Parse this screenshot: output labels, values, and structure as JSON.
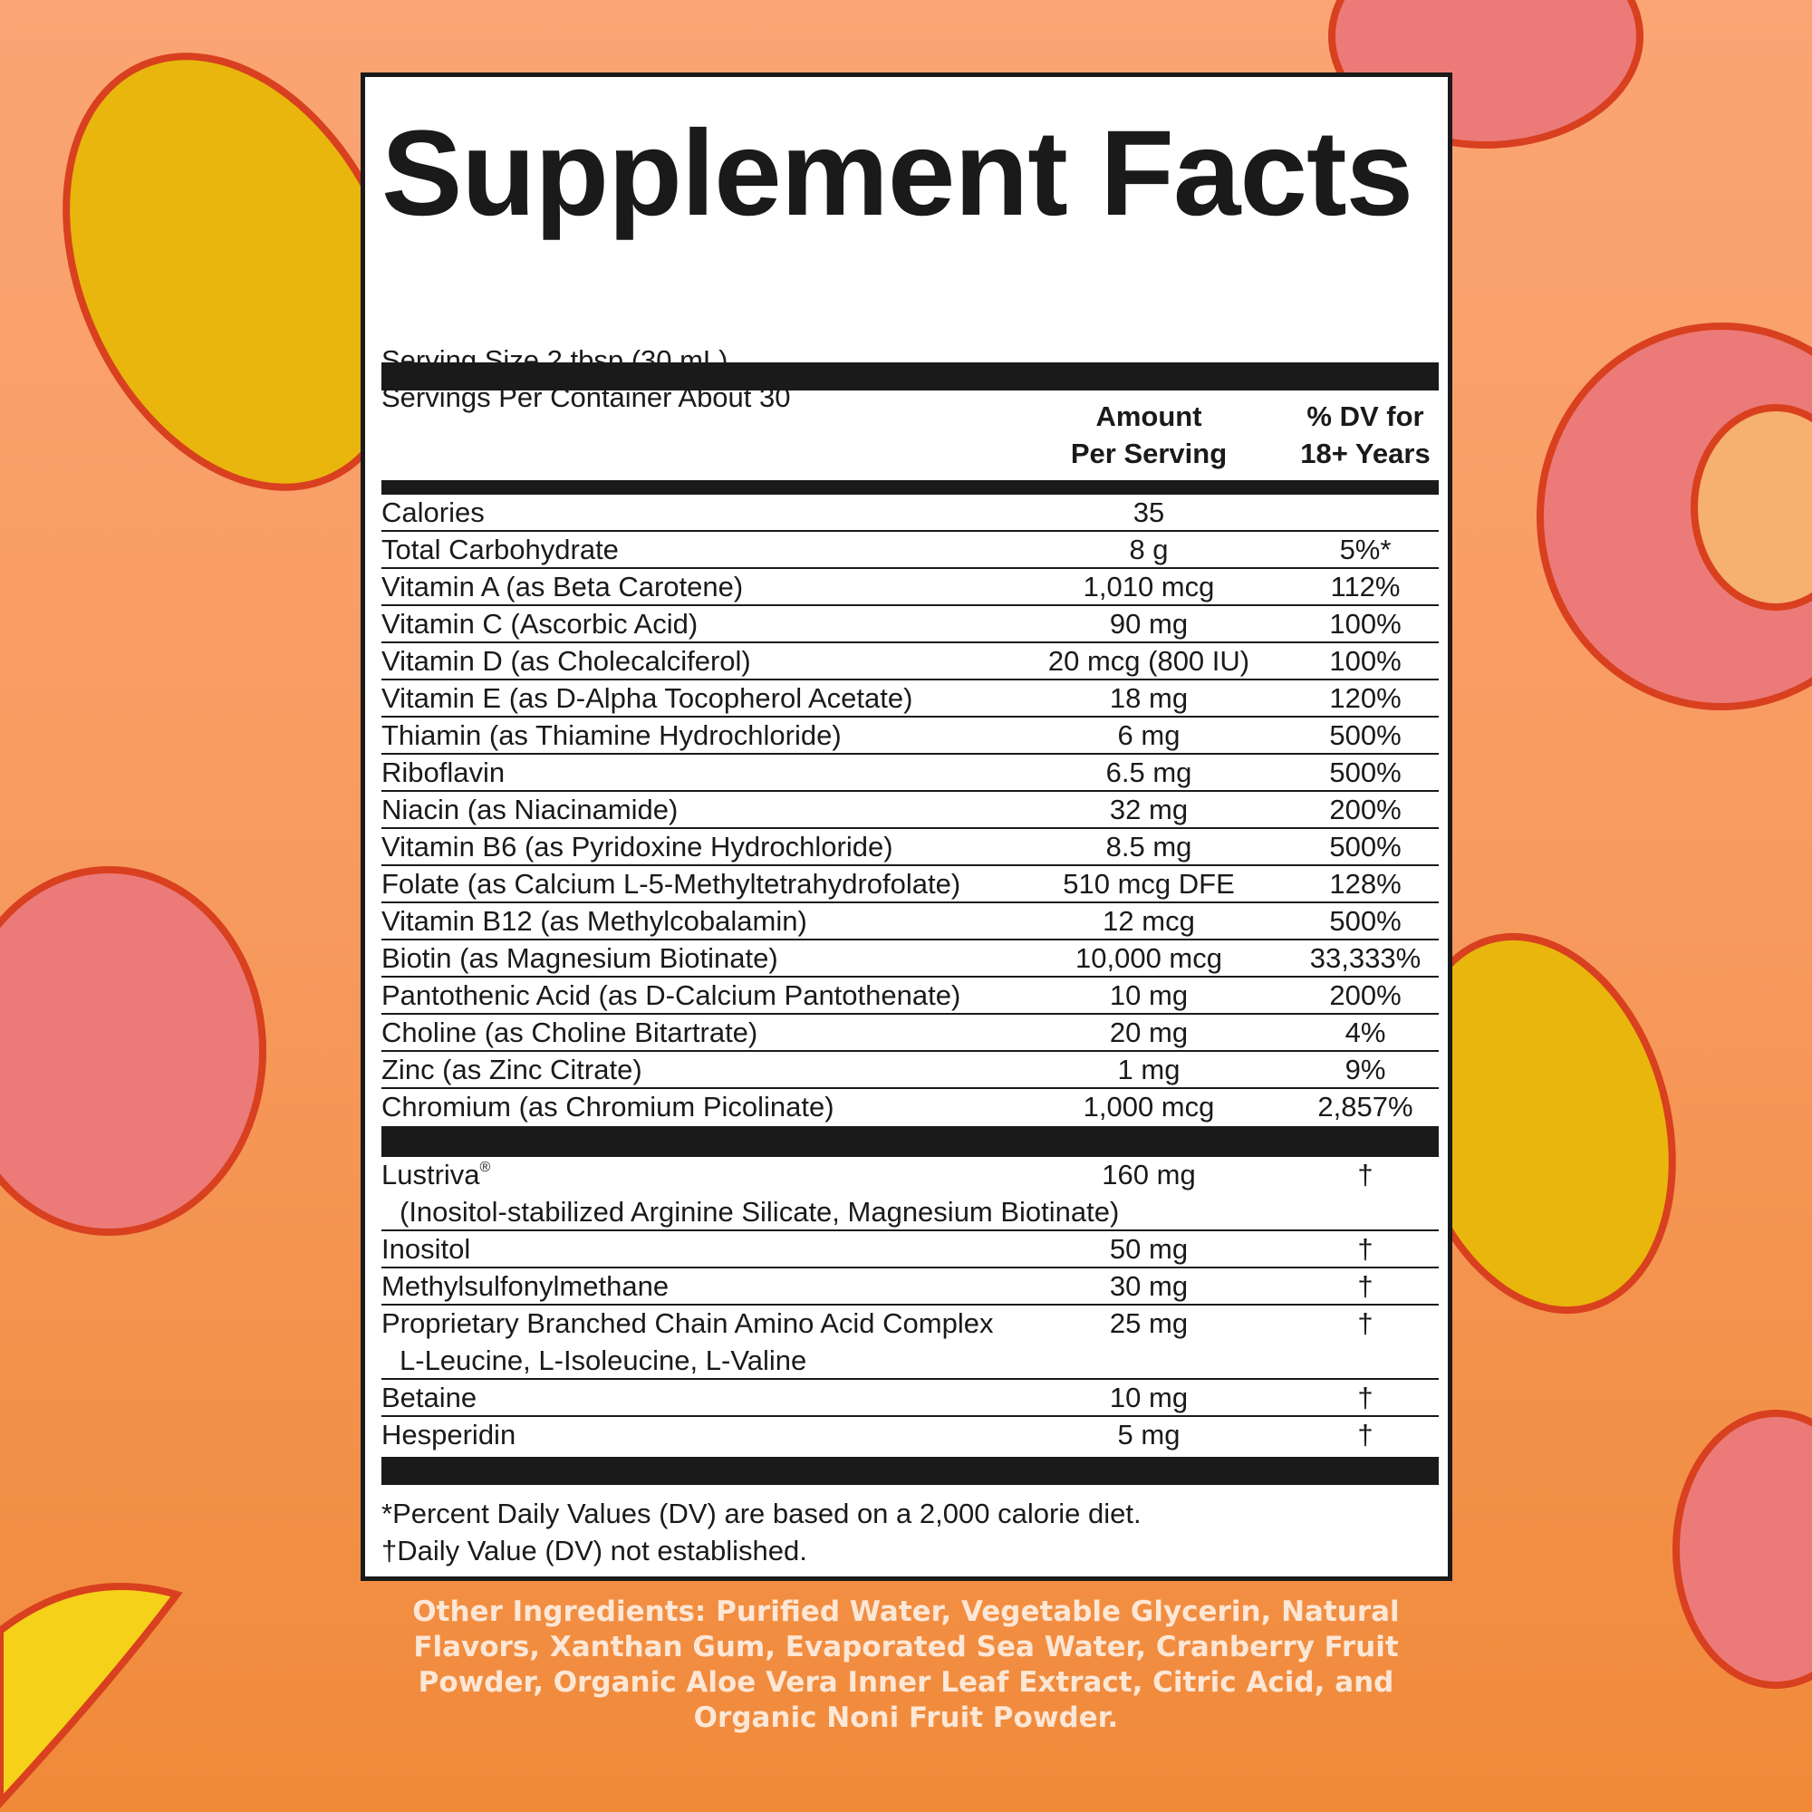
{
  "title": "Supplement Facts",
  "serving_size": "Serving Size 2 tbsp (30 mL)",
  "servings_per_container": "Servings Per Container About 30",
  "headers": {
    "amount_1": "Amount",
    "amount_2": "Per Serving",
    "dv_1": "% DV for",
    "dv_2": "18+ Years"
  },
  "nutrients": [
    {
      "name": "Calories",
      "amount": "35",
      "dv": ""
    },
    {
      "name": "Total Carbohydrate",
      "amount": "8 g",
      "dv": "5%*"
    },
    {
      "name": "Vitamin A (as Beta Carotene)",
      "amount": "1,010 mcg",
      "dv": "112%"
    },
    {
      "name": "Vitamin C (Ascorbic Acid)",
      "amount": "90 mg",
      "dv": "100%"
    },
    {
      "name": "Vitamin D (as Cholecalciferol)",
      "amount": "20 mcg (800 IU)",
      "dv": "100%"
    },
    {
      "name": "Vitamin E (as D-Alpha Tocopherol Acetate)",
      "amount": "18 mg",
      "dv": "120%"
    },
    {
      "name": "Thiamin (as Thiamine Hydrochloride)",
      "amount": "6 mg",
      "dv": "500%"
    },
    {
      "name": "Riboflavin",
      "amount": "6.5 mg",
      "dv": "500%"
    },
    {
      "name": "Niacin (as Niacinamide)",
      "amount": "32 mg",
      "dv": "200%"
    },
    {
      "name": "Vitamin B6 (as Pyridoxine Hydrochloride)",
      "amount": "8.5 mg",
      "dv": "500%"
    },
    {
      "name": "Folate (as Calcium L-5-Methyltetrahydrofolate)",
      "amount": "510 mcg DFE",
      "dv": "128%"
    },
    {
      "name": "Vitamin B12 (as Methylcobalamin)",
      "amount": "12 mcg",
      "dv": "500%"
    },
    {
      "name": "Biotin (as Magnesium Biotinate)",
      "amount": "10,000 mcg",
      "dv": "33,333%"
    },
    {
      "name": "Pantothenic Acid (as D-Calcium Pantothenate)",
      "amount": "10 mg",
      "dv": "200%"
    },
    {
      "name": "Choline (as Choline Bitartrate)",
      "amount": "20 mg",
      "dv": "4%"
    },
    {
      "name": "Zinc (as Zinc Citrate)",
      "amount": "1 mg",
      "dv": "9%"
    },
    {
      "name": "Chromium (as Chromium Picolinate)",
      "amount": "1,000 mcg",
      "dv": "2,857%"
    }
  ],
  "other_actives": [
    {
      "name": "Lustriva",
      "reg": "®",
      "sub": "(Inositol-stabilized Arginine Silicate, Magnesium Biotinate)",
      "amount": "160 mg",
      "dv": "†"
    },
    {
      "name": "Inositol",
      "amount": "50 mg",
      "dv": "†"
    },
    {
      "name": "Methylsulfonylmethane",
      "amount": "30 mg",
      "dv": "†"
    },
    {
      "name": "Proprietary Branched Chain Amino Acid Complex",
      "sub": "L-Leucine, L-Isoleucine, L-Valine",
      "amount": "25 mg",
      "dv": "†"
    },
    {
      "name": "Betaine",
      "amount": "10 mg",
      "dv": "†"
    },
    {
      "name": "Hesperidin",
      "amount": "5 mg",
      "dv": "†"
    }
  ],
  "footnotes": [
    "*Percent Daily Values (DV) are based on a 2,000 calorie diet.",
    "†Daily Value (DV) not established."
  ],
  "other_ingredients": "Other Ingredients: Purified Water, Vegetable Glycerin, Natural Flavors, Xanthan Gum, Evaporated Sea Water, Cranberry Fruit Powder, Organic Aloe Vera Inner Leaf Extract, Citric Acid, and Organic Noni Fruit Powder.",
  "colors": {
    "background_top": "#fba574",
    "background_bottom": "#f08a3a",
    "ink": "#1a1a1a",
    "fruit_yellow": "#e8b60c",
    "fruit_pink": "#ec7a78",
    "fruit_outline": "#d8401f"
  }
}
